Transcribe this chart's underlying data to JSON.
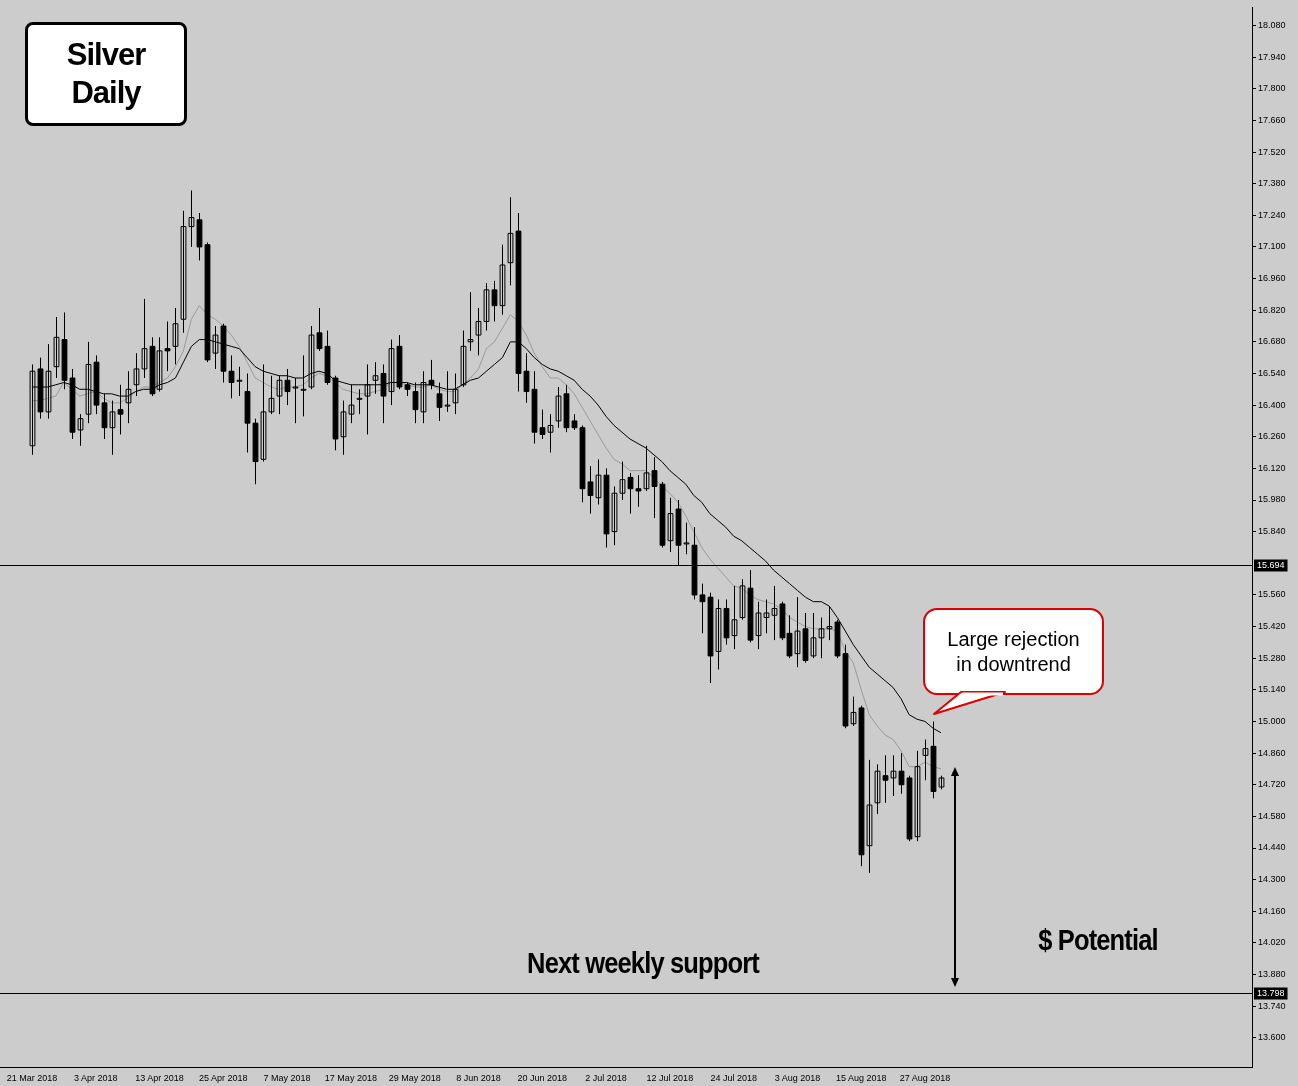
{
  "chart_data": {
    "type": "candlestick",
    "title": "Silver Daily",
    "categories": [
      "21 Mar 2018",
      null,
      null,
      null,
      null,
      null,
      null,
      null,
      "3 Apr 2018",
      null,
      null,
      null,
      null,
      null,
      null,
      null,
      "13 Apr 2018",
      null,
      null,
      null,
      null,
      null,
      null,
      null,
      "25 Apr 2018",
      null,
      null,
      null,
      null,
      null,
      null,
      null,
      "7 May 2018",
      null,
      null,
      null,
      null,
      null,
      null,
      null,
      "17 May 2018",
      null,
      null,
      null,
      null,
      null,
      null,
      null,
      "29 May 2018",
      null,
      null,
      null,
      null,
      null,
      null,
      null,
      "8 Jun 2018",
      null,
      null,
      null,
      null,
      null,
      null,
      null,
      "20 Jun 2018",
      null,
      null,
      null,
      null,
      null,
      null,
      null,
      "2 Jul 2018",
      null,
      null,
      null,
      null,
      null,
      null,
      null,
      "12 Jul 2018",
      null,
      null,
      null,
      null,
      null,
      null,
      null,
      "24 Jul 2018",
      null,
      null,
      null,
      null,
      null,
      null,
      null,
      "3 Aug 2018",
      null,
      null,
      null,
      null,
      null,
      null,
      null,
      "15 Aug 2018",
      null,
      null,
      null,
      null,
      null,
      null,
      null,
      "27 Aug 2018",
      null,
      null
    ],
    "ohlc": [
      [
        16.22,
        16.58,
        16.18,
        16.55
      ],
      [
        16.56,
        16.61,
        16.34,
        16.37
      ],
      [
        16.37,
        16.67,
        16.34,
        16.55
      ],
      [
        16.57,
        16.79,
        16.52,
        16.7
      ],
      [
        16.69,
        16.81,
        16.47,
        16.51
      ],
      [
        16.52,
        16.56,
        16.25,
        16.28
      ],
      [
        16.29,
        16.36,
        16.22,
        16.34
      ],
      [
        16.36,
        16.68,
        16.32,
        16.58
      ],
      [
        16.59,
        16.62,
        16.36,
        16.4
      ],
      [
        16.41,
        16.45,
        16.25,
        16.3
      ],
      [
        16.3,
        16.42,
        16.18,
        16.37
      ],
      [
        16.38,
        16.49,
        16.27,
        16.36
      ],
      [
        16.41,
        16.55,
        16.32,
        16.47
      ],
      [
        16.49,
        16.63,
        16.44,
        16.56
      ],
      [
        16.56,
        16.87,
        16.52,
        16.65
      ],
      [
        16.66,
        16.7,
        16.44,
        16.45
      ],
      [
        16.47,
        16.7,
        16.46,
        16.64
      ],
      [
        16.65,
        16.77,
        16.55,
        16.64
      ],
      [
        16.66,
        16.83,
        16.58,
        16.76
      ],
      [
        16.78,
        17.26,
        16.72,
        17.19
      ],
      [
        17.19,
        17.35,
        17.1,
        17.23
      ],
      [
        17.22,
        17.25,
        17.04,
        17.1
      ],
      [
        17.11,
        17.12,
        16.59,
        16.6
      ],
      [
        16.63,
        16.75,
        16.56,
        16.71
      ],
      [
        16.75,
        16.76,
        16.5,
        16.55
      ],
      [
        16.55,
        16.62,
        16.43,
        16.5
      ],
      [
        16.51,
        16.57,
        16.44,
        16.51
      ],
      [
        16.46,
        16.54,
        16.19,
        16.32
      ],
      [
        16.32,
        16.34,
        16.05,
        16.15
      ],
      [
        16.16,
        16.58,
        16.15,
        16.37
      ],
      [
        16.37,
        16.53,
        16.36,
        16.43
      ],
      [
        16.44,
        16.53,
        16.36,
        16.51
      ],
      [
        16.51,
        16.56,
        16.4,
        16.46
      ],
      [
        16.48,
        16.52,
        16.32,
        16.48
      ],
      [
        16.47,
        16.62,
        16.35,
        16.47
      ],
      [
        16.48,
        16.75,
        16.47,
        16.71
      ],
      [
        16.72,
        16.83,
        16.64,
        16.65
      ],
      [
        16.66,
        16.73,
        16.49,
        16.5
      ],
      [
        16.52,
        16.53,
        16.2,
        16.25
      ],
      [
        16.26,
        16.42,
        16.18,
        16.37
      ],
      [
        16.36,
        16.49,
        16.32,
        16.4
      ],
      [
        16.43,
        16.47,
        16.36,
        16.43
      ],
      [
        16.44,
        16.58,
        16.27,
        16.49
      ],
      [
        16.51,
        16.59,
        16.45,
        16.53
      ],
      [
        16.54,
        16.58,
        16.32,
        16.44
      ],
      [
        16.46,
        16.69,
        16.4,
        16.65
      ],
      [
        16.66,
        16.71,
        16.47,
        16.48
      ],
      [
        16.49,
        16.5,
        16.44,
        16.47
      ],
      [
        16.46,
        16.5,
        16.32,
        16.38
      ],
      [
        16.37,
        16.55,
        16.32,
        16.5
      ],
      [
        16.51,
        16.6,
        16.47,
        16.49
      ],
      [
        16.45,
        16.5,
        16.33,
        16.39
      ],
      [
        16.4,
        16.55,
        16.37,
        16.4
      ],
      [
        16.41,
        16.54,
        16.36,
        16.47
      ],
      [
        16.49,
        16.73,
        16.48,
        16.66
      ],
      [
        16.68,
        16.9,
        16.64,
        16.69
      ],
      [
        16.71,
        16.83,
        16.62,
        16.77
      ],
      [
        16.77,
        16.94,
        16.73,
        16.91
      ],
      [
        16.91,
        16.95,
        16.77,
        16.84
      ],
      [
        16.84,
        17.11,
        16.8,
        17.02
      ],
      [
        17.03,
        17.32,
        16.93,
        17.16
      ],
      [
        17.17,
        17.25,
        16.46,
        16.54
      ],
      [
        16.55,
        16.63,
        16.41,
        16.46
      ],
      [
        16.47,
        16.55,
        16.23,
        16.28
      ],
      [
        16.3,
        16.38,
        16.25,
        16.27
      ],
      [
        16.28,
        16.36,
        16.19,
        16.31
      ],
      [
        16.33,
        16.48,
        16.3,
        16.44
      ],
      [
        16.45,
        16.49,
        16.28,
        16.3
      ],
      [
        16.33,
        16.36,
        16.29,
        16.3
      ],
      [
        16.3,
        16.31,
        15.97,
        16.03
      ],
      [
        16.06,
        16.13,
        15.92,
        16.0
      ],
      [
        15.99,
        16.16,
        15.96,
        16.09
      ],
      [
        16.09,
        16.12,
        15.77,
        15.83
      ],
      [
        15.84,
        16.04,
        15.78,
        16.01
      ],
      [
        16.01,
        16.15,
        15.98,
        16.07
      ],
      [
        16.08,
        16.1,
        15.92,
        16.03
      ],
      [
        16.03,
        16.09,
        15.95,
        16.02
      ],
      [
        16.03,
        16.22,
        16.02,
        16.1
      ],
      [
        16.11,
        16.17,
        15.9,
        16.04
      ],
      [
        16.05,
        16.06,
        15.77,
        15.78
      ],
      [
        15.8,
        15.99,
        15.75,
        15.92
      ],
      [
        15.94,
        15.98,
        15.69,
        15.78
      ],
      [
        15.79,
        15.88,
        15.74,
        15.79
      ],
      [
        15.78,
        15.86,
        15.54,
        15.56
      ],
      [
        15.56,
        15.61,
        15.39,
        15.53
      ],
      [
        15.55,
        15.57,
        15.17,
        15.29
      ],
      [
        15.31,
        15.54,
        15.23,
        15.5
      ],
      [
        15.5,
        15.54,
        15.34,
        15.37
      ],
      [
        15.38,
        15.6,
        15.32,
        15.45
      ],
      [
        15.46,
        15.63,
        15.45,
        15.6
      ],
      [
        15.59,
        15.67,
        15.35,
        15.36
      ],
      [
        15.38,
        15.53,
        15.32,
        15.48
      ],
      [
        15.46,
        15.54,
        15.39,
        15.48
      ],
      [
        15.47,
        15.6,
        15.36,
        15.5
      ],
      [
        15.52,
        15.53,
        15.36,
        15.37
      ],
      [
        15.39,
        15.47,
        15.28,
        15.29
      ],
      [
        15.3,
        15.55,
        15.24,
        15.4
      ],
      [
        15.41,
        15.48,
        15.26,
        15.27
      ],
      [
        15.29,
        15.48,
        15.28,
        15.37
      ],
      [
        15.37,
        15.46,
        15.28,
        15.41
      ],
      [
        15.41,
        15.51,
        15.36,
        15.42
      ],
      [
        15.44,
        15.45,
        15.28,
        15.29
      ],
      [
        15.3,
        15.34,
        14.97,
        14.98
      ],
      [
        14.99,
        15.11,
        14.98,
        15.04
      ],
      [
        15.06,
        15.07,
        14.36,
        14.41
      ],
      [
        14.45,
        14.83,
        14.33,
        14.63
      ],
      [
        14.64,
        14.81,
        14.59,
        14.78
      ],
      [
        14.76,
        14.85,
        14.64,
        14.74
      ],
      [
        14.75,
        14.85,
        14.67,
        14.78
      ],
      [
        14.78,
        14.86,
        14.68,
        14.72
      ],
      [
        14.75,
        14.76,
        14.47,
        14.48
      ],
      [
        14.49,
        14.87,
        14.47,
        14.8
      ],
      [
        14.85,
        14.92,
        14.74,
        14.88
      ],
      [
        14.89,
        15.0,
        14.66,
        14.69
      ],
      [
        14.71,
        14.76,
        14.7,
        14.75
      ]
    ],
    "series": [
      {
        "type": "line",
        "color": "#000000",
        "values": [
          16.48,
          16.48,
          16.48,
          16.49,
          16.5,
          16.49,
          16.47,
          16.47,
          16.46,
          16.45,
          16.45,
          16.44,
          16.44,
          16.46,
          16.47,
          16.47,
          16.49,
          16.5,
          16.52,
          16.59,
          16.66,
          16.69,
          16.69,
          16.68,
          16.67,
          16.66,
          16.65,
          16.61,
          16.57,
          16.55,
          16.54,
          16.53,
          16.53,
          16.52,
          16.52,
          16.54,
          16.55,
          16.54,
          16.51,
          16.5,
          16.49,
          16.49,
          16.49,
          16.49,
          16.49,
          16.5,
          16.5,
          16.5,
          16.49,
          16.49,
          16.49,
          16.48,
          16.47,
          16.47,
          16.49,
          16.51,
          16.52,
          16.55,
          16.58,
          16.61,
          16.68,
          16.68,
          16.65,
          16.61,
          16.58,
          16.56,
          16.55,
          16.53,
          16.51,
          16.47,
          16.44,
          16.4,
          16.35,
          16.31,
          16.28,
          16.25,
          16.23,
          16.21,
          16.18,
          16.15,
          16.11,
          16.08,
          16.05,
          16.0,
          15.97,
          15.92,
          15.89,
          15.86,
          15.82,
          15.8,
          15.77,
          15.74,
          15.71,
          15.67,
          15.64,
          15.61,
          15.58,
          15.55,
          15.53,
          15.53,
          15.51,
          15.46,
          15.4,
          15.34,
          15.29,
          15.24,
          15.21,
          15.18,
          15.15,
          15.1,
          15.03,
          15.01,
          15.0,
          14.97,
          14.95
        ]
      },
      {
        "type": "line",
        "color": "#9a9a9a",
        "values": [
          16.42,
          16.42,
          16.43,
          16.44,
          16.5,
          16.47,
          16.44,
          16.45,
          16.46,
          16.43,
          16.41,
          16.41,
          16.43,
          16.46,
          16.48,
          16.48,
          16.5,
          16.52,
          16.57,
          16.64,
          16.78,
          16.84,
          16.8,
          16.78,
          16.75,
          16.71,
          16.66,
          16.59,
          16.52,
          16.5,
          16.48,
          16.47,
          16.48,
          16.48,
          16.49,
          16.52,
          16.54,
          16.53,
          16.5,
          16.47,
          16.46,
          16.45,
          16.45,
          16.46,
          16.47,
          16.5,
          16.5,
          16.49,
          16.48,
          16.48,
          16.49,
          16.47,
          16.46,
          16.46,
          16.49,
          16.52,
          16.56,
          16.65,
          16.68,
          16.74,
          16.8,
          16.77,
          16.71,
          16.63,
          16.57,
          16.52,
          16.52,
          16.49,
          16.45,
          16.39,
          16.33,
          16.27,
          16.21,
          16.16,
          16.14,
          16.11,
          16.11,
          16.11,
          16.08,
          16.04,
          16.01,
          15.97,
          15.91,
          15.84,
          15.77,
          15.72,
          15.68,
          15.64,
          15.6,
          15.59,
          15.56,
          15.54,
          15.53,
          15.52,
          15.5,
          15.46,
          15.44,
          15.42,
          15.41,
          15.41,
          15.41,
          15.4,
          15.31,
          15.26,
          15.14,
          15.03,
          14.98,
          14.94,
          14.92,
          14.87,
          14.8,
          14.8,
          14.82,
          14.8,
          14.79
        ]
      }
    ],
    "ylim": [
      13.47,
      18.16
    ],
    "yticks": [
      {
        "value": 18.08,
        "label": "18.080"
      },
      {
        "value": 17.94,
        "label": "17.940"
      },
      {
        "value": 17.8,
        "label": "17.800"
      },
      {
        "value": 17.66,
        "label": "17.660"
      },
      {
        "value": 17.52,
        "label": "17.520"
      },
      {
        "value": 17.38,
        "label": "17.380"
      },
      {
        "value": 17.24,
        "label": "17.240"
      },
      {
        "value": 17.1,
        "label": "17.100"
      },
      {
        "value": 16.96,
        "label": "16.960"
      },
      {
        "value": 16.82,
        "label": "16.820"
      },
      {
        "value": 16.68,
        "label": "16.680"
      },
      {
        "value": 16.54,
        "label": "16.540"
      },
      {
        "value": 16.4,
        "label": "16.400"
      },
      {
        "value": 16.26,
        "label": "16.260"
      },
      {
        "value": 16.12,
        "label": "16.120"
      },
      {
        "value": 15.98,
        "label": "15.980"
      },
      {
        "value": 15.84,
        "label": "15.840"
      },
      {
        "value": 15.56,
        "label": "15.560"
      },
      {
        "value": 15.42,
        "label": "15.420"
      },
      {
        "value": 15.28,
        "label": "15.280"
      },
      {
        "value": 15.14,
        "label": "15.140"
      },
      {
        "value": 15,
        "label": "15.000"
      },
      {
        "value": 14.86,
        "label": "14.860"
      },
      {
        "value": 14.72,
        "label": "14.720"
      },
      {
        "value": 14.58,
        "label": "14.580"
      },
      {
        "value": 14.44,
        "label": "14.440"
      },
      {
        "value": 14.3,
        "label": "14.300"
      },
      {
        "value": 14.16,
        "label": "14.160"
      },
      {
        "value": 14.02,
        "label": "14.020"
      },
      {
        "value": 13.88,
        "label": "13.880"
      },
      {
        "value": 13.74,
        "label": "13.740"
      },
      {
        "value": 13.6,
        "label": "13.600"
      }
    ],
    "ref_lines": [
      {
        "axis": "y",
        "value": 15.694,
        "label": "15.694"
      },
      {
        "axis": "y",
        "value": 13.798,
        "label": "13.798"
      }
    ],
    "annotations": [
      "Large rejection in downtrend",
      "Next weekly support",
      "$ Potential"
    ]
  }
}
